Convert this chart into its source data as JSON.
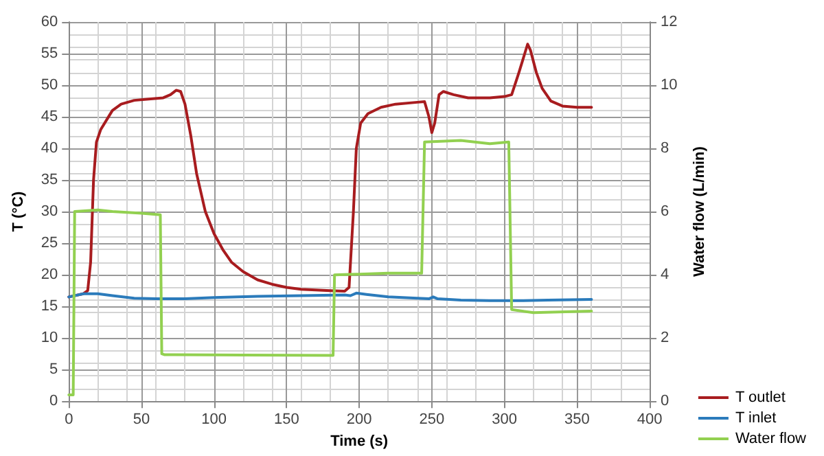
{
  "chart_data": {
    "type": "line",
    "xlabel": "Time (s)",
    "ylabel": "T (°C)",
    "y2label": "Water flow (L/min)",
    "xlim": [
      0,
      400
    ],
    "xticks": [
      0,
      50,
      100,
      150,
      200,
      250,
      300,
      350,
      400
    ],
    "ylim": [
      0,
      60
    ],
    "yticks": [
      0,
      5,
      10,
      15,
      20,
      25,
      30,
      35,
      40,
      45,
      50,
      55,
      60
    ],
    "y2lim": [
      0,
      12
    ],
    "y2ticks": [
      0,
      2,
      4,
      6,
      8,
      10,
      12
    ],
    "grid": true,
    "legend": "bottom right",
    "marker": "none",
    "line_style": "solid",
    "series": [
      {
        "name": "T outlet",
        "color": "#a81c1f",
        "x": [
          0,
          10,
          13,
          15,
          17,
          19,
          22,
          26,
          30,
          36,
          45,
          55,
          65,
          70,
          74,
          77,
          80,
          84,
          88,
          94,
          100,
          106,
          112,
          120,
          130,
          140,
          150,
          160,
          170,
          180,
          190,
          193,
          196,
          198,
          201,
          206,
          215,
          225,
          240,
          245,
          248,
          250,
          252,
          255,
          258,
          265,
          275,
          290,
          300,
          305,
          310,
          314,
          316,
          318,
          322,
          326,
          332,
          340,
          350,
          360
        ],
        "values": [
          16.5,
          17,
          17.5,
          22,
          35,
          41,
          43,
          44.5,
          46,
          47,
          47.6,
          47.8,
          48,
          48.5,
          49.2,
          49,
          47,
          42,
          36,
          30,
          26.5,
          24,
          22,
          20.5,
          19.2,
          18.5,
          18,
          17.7,
          17.6,
          17.5,
          17.4,
          18,
          30,
          40,
          44,
          45.5,
          46.5,
          47,
          47.3,
          47.4,
          45,
          42.5,
          44,
          48.5,
          49,
          48.5,
          48,
          48,
          48.2,
          48.5,
          52,
          55,
          56.5,
          55.5,
          52,
          49.5,
          47.5,
          46.7,
          46.5,
          46.5
        ]
      },
      {
        "name": "T inlet",
        "color": "#2b7bbb",
        "x": [
          0,
          10,
          20,
          30,
          45,
          60,
          80,
          100,
          130,
          160,
          190,
          194,
          198,
          205,
          220,
          240,
          248,
          251,
          254,
          270,
          290,
          310,
          330,
          360
        ],
        "values": [
          16.5,
          17,
          17,
          16.7,
          16.3,
          16.2,
          16.2,
          16.4,
          16.6,
          16.7,
          16.8,
          16.7,
          17.1,
          16.9,
          16.5,
          16.3,
          16.2,
          16.5,
          16.2,
          16,
          15.9,
          15.9,
          16,
          16.1
        ]
      },
      {
        "name": "Water flow",
        "color": "#92d050",
        "axis": "y2",
        "x": [
          0,
          3,
          4,
          20,
          30,
          50,
          63,
          64,
          66,
          120,
          182,
          183,
          200,
          220,
          243,
          245,
          270,
          290,
          303,
          305,
          320,
          360
        ],
        "values": [
          0.2,
          0.2,
          6,
          6.05,
          6,
          5.95,
          5.9,
          1.5,
          1.47,
          1.46,
          1.45,
          4,
          4.02,
          4.05,
          4.05,
          8.2,
          8.25,
          8.15,
          8.2,
          2.9,
          2.8,
          2.85
        ]
      }
    ]
  }
}
